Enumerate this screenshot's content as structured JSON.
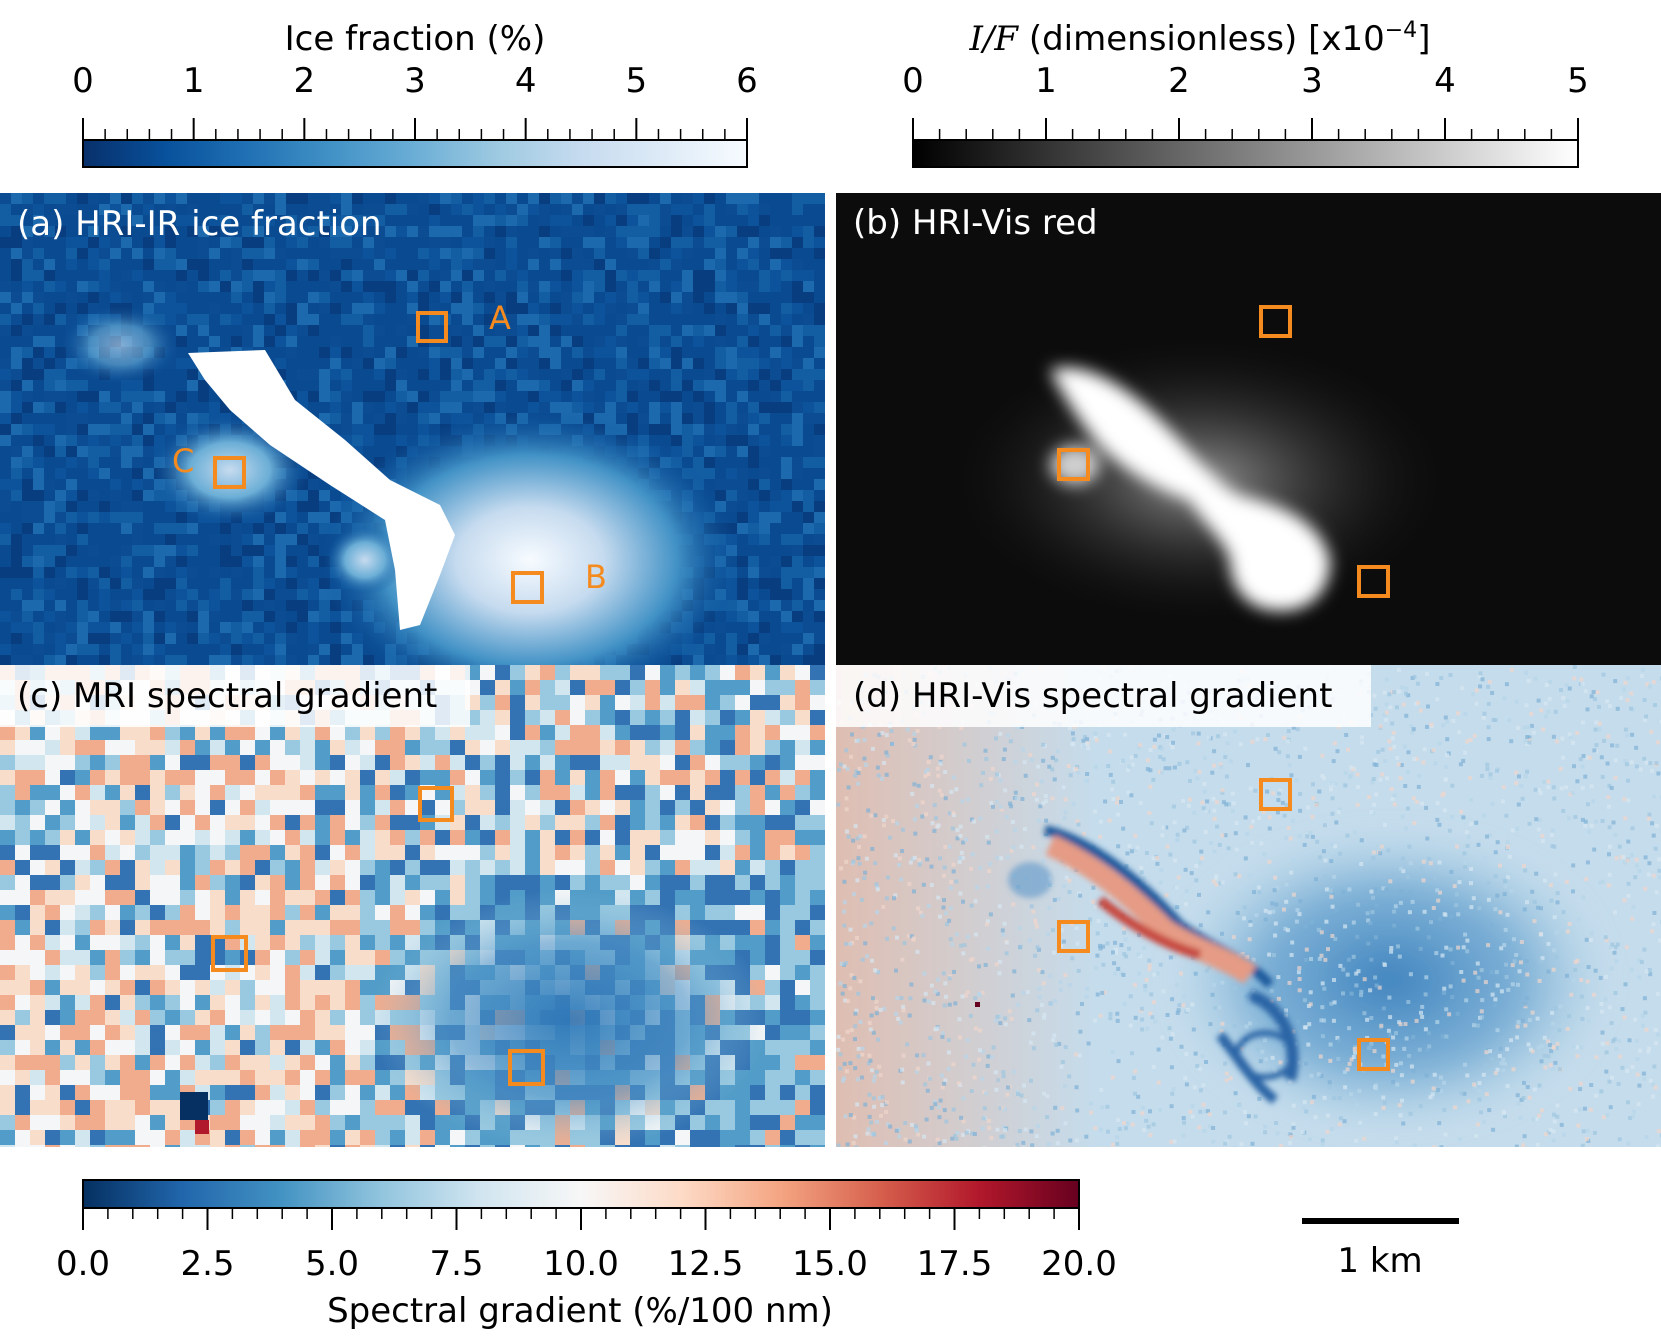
{
  "chart_data": [
    {
      "type": "heatmap",
      "panel_label": "(a) HRI-IR ice fraction",
      "colorbar": {
        "title": "Ice fraction (%)",
        "range": [
          0,
          6
        ],
        "ticks": [
          "0",
          "1",
          "2",
          "3",
          "4",
          "5",
          "6"
        ],
        "minor_ticks_per_major": 5,
        "colors": [
          "#08306b",
          "#08519c",
          "#2171b5",
          "#4292c6",
          "#6baed6",
          "#9ecae1",
          "#c6dbef",
          "#deebf7",
          "#f7fbff"
        ]
      },
      "regions": [
        {
          "name": "A",
          "ice_fraction_pct": 0.0
        },
        {
          "name": "B",
          "ice_fraction_pct": 5.5
        },
        {
          "name": "C",
          "ice_fraction_pct": 3.5
        }
      ]
    },
    {
      "type": "heatmap",
      "panel_label": "(b) HRI-Vis red",
      "colorbar": {
        "title_italic": "I/F",
        "title_rest": " (dimensionless) [x10",
        "title_exp": "−4",
        "title_close": "]",
        "range": [
          0,
          5
        ],
        "ticks": [
          "0",
          "1",
          "2",
          "3",
          "4",
          "5"
        ],
        "minor_ticks_per_major": 5,
        "colors": [
          "#000000",
          "#ffffff"
        ]
      }
    },
    {
      "type": "heatmap",
      "panel_label": "(c) MRI spectral gradient"
    },
    {
      "type": "heatmap",
      "panel_label": "(d) HRI-Vis spectral gradient",
      "shared_colorbar": {
        "title": "Spectral gradient (%/100 nm)",
        "range": [
          0,
          20
        ],
        "ticks": [
          "0.0",
          "2.5",
          "5.0",
          "7.5",
          "10.0",
          "12.5",
          "15.0",
          "17.5",
          "20.0"
        ],
        "minor_ticks_per_major": 5,
        "colors": [
          "#053061",
          "#2166ac",
          "#4393c3",
          "#92c5de",
          "#d1e5f0",
          "#f7f7f7",
          "#fddbc7",
          "#f4a582",
          "#d6604d",
          "#b2182b",
          "#67001f"
        ]
      }
    }
  ],
  "scale_bar": {
    "label": "1 km"
  },
  "marker_color": "#f58a1f"
}
